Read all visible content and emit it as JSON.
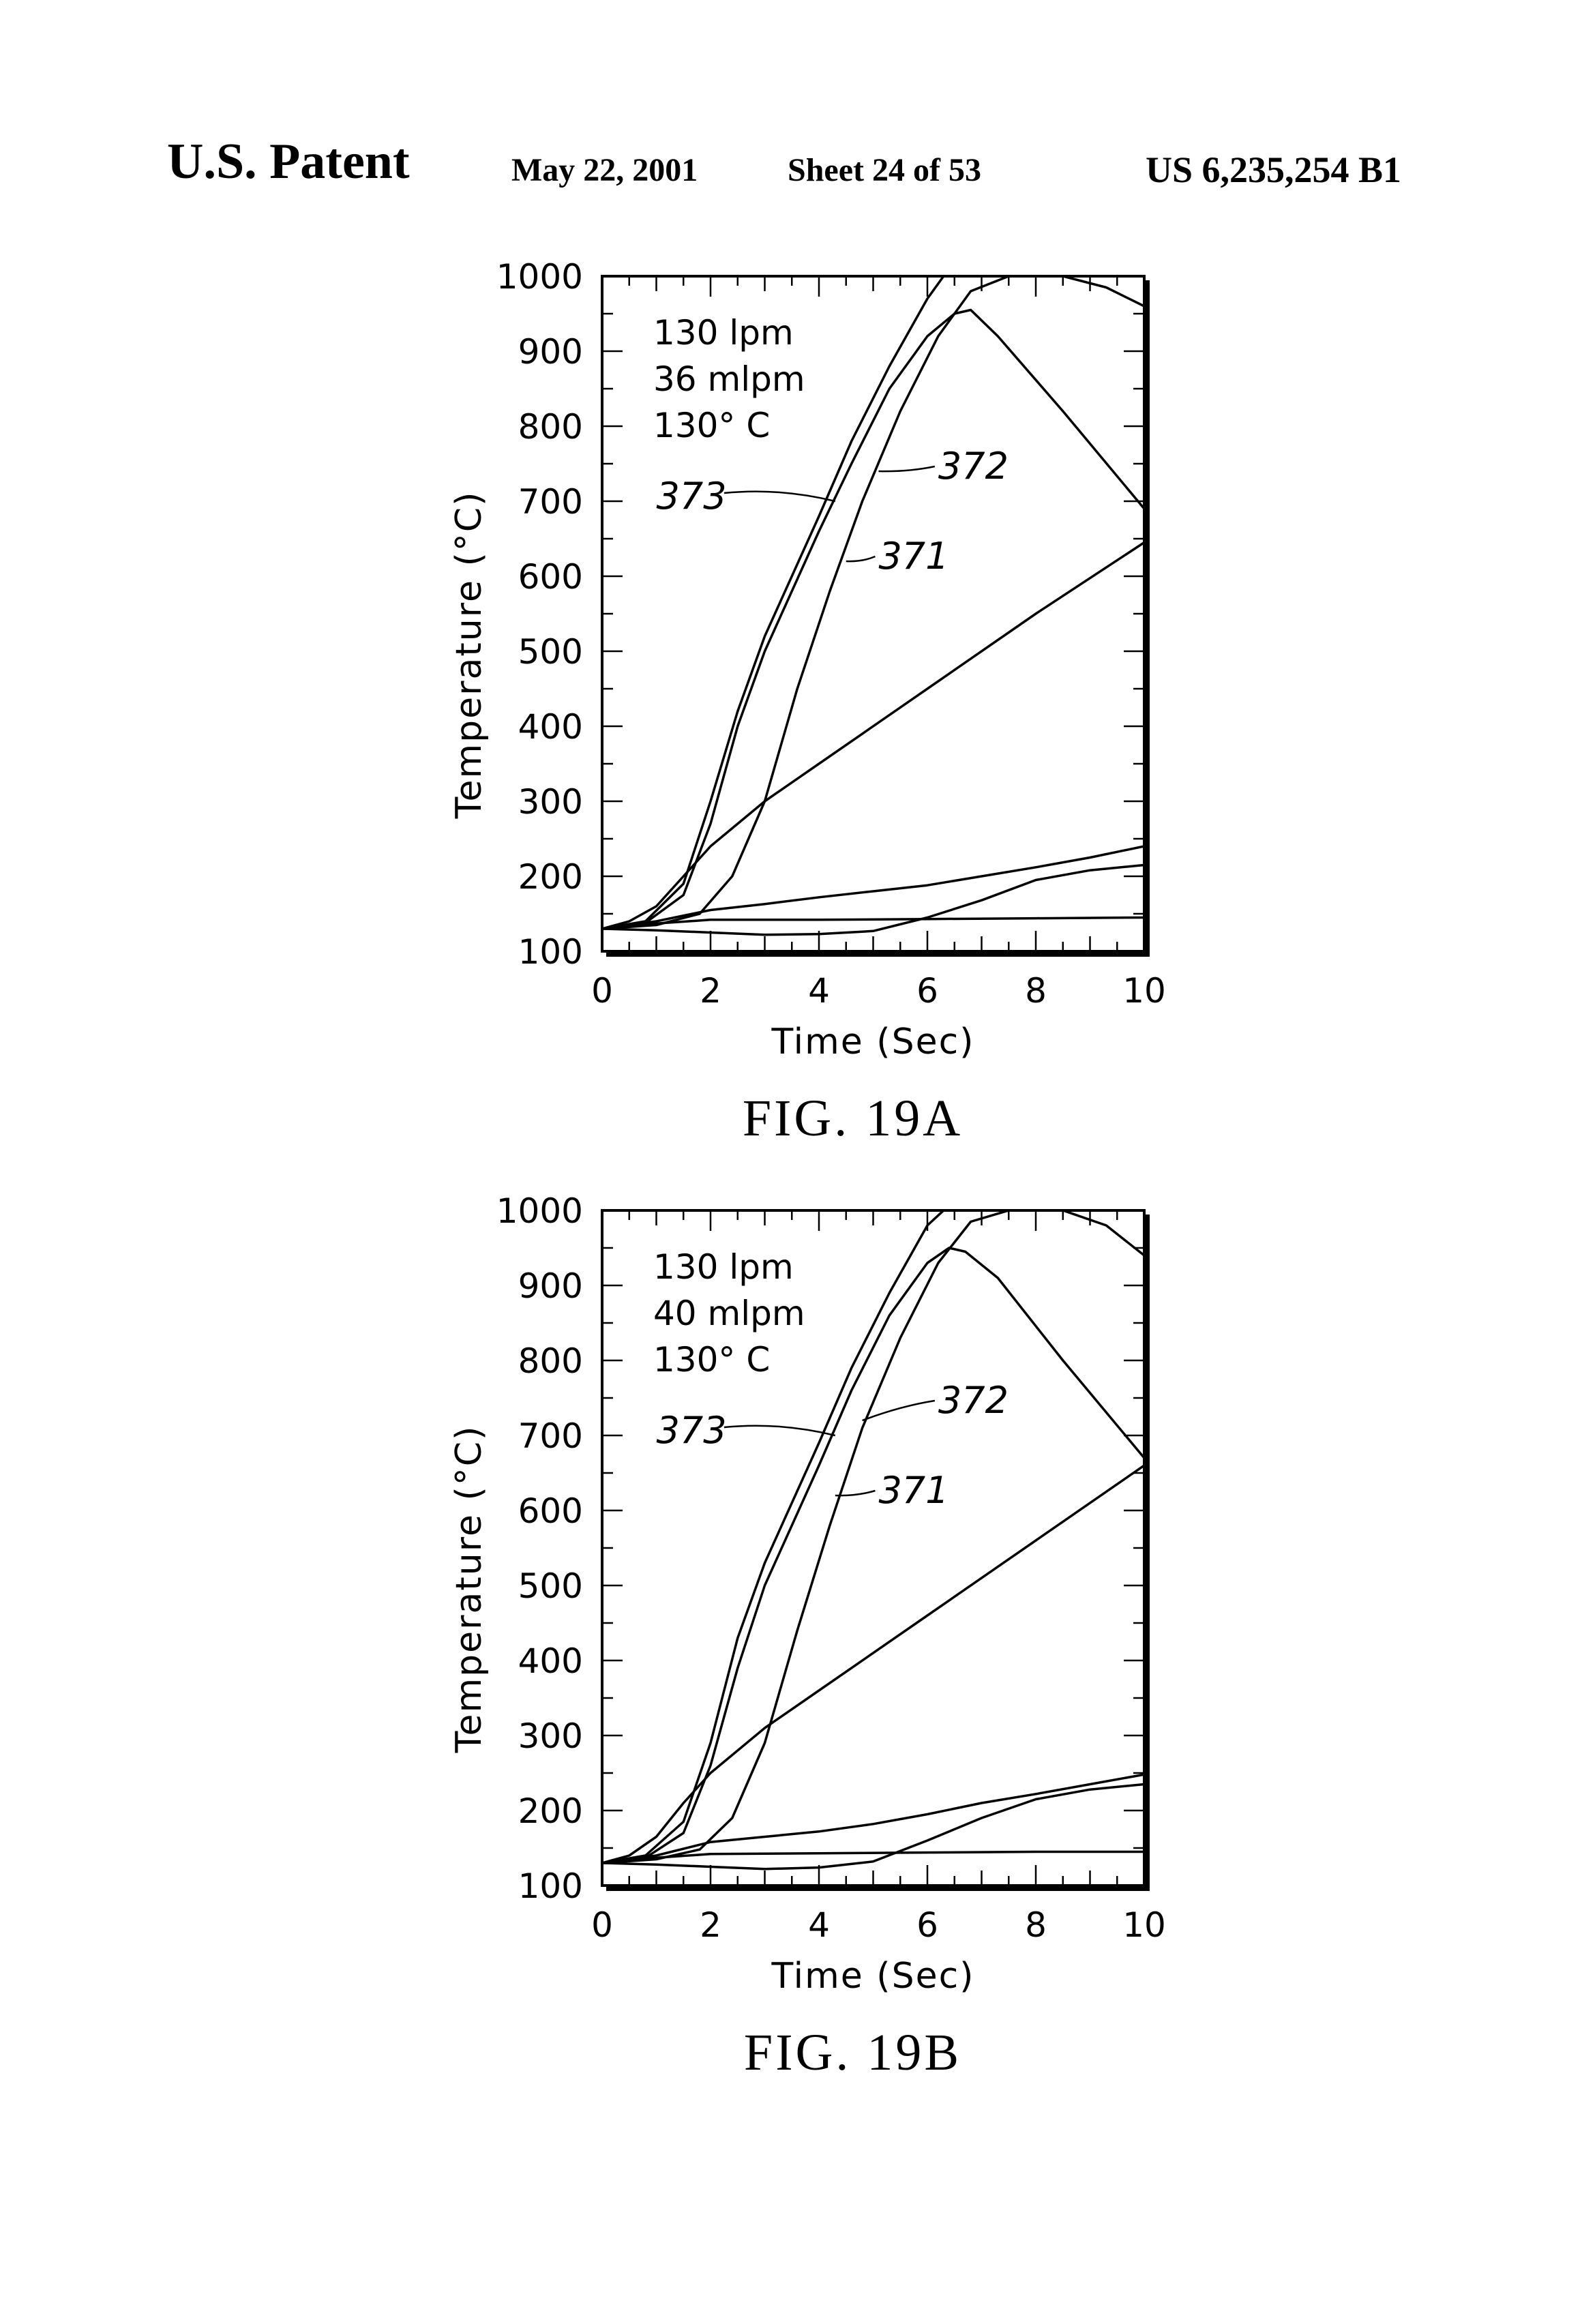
{
  "header": {
    "left": "U.S. Patent",
    "date": "May 22, 2001",
    "sheet": "Sheet 24 of 53",
    "number": "US 6,235,254 B1"
  },
  "chart_data": [
    {
      "type": "line",
      "caption": "FIG. 19A",
      "xlabel": "Time (Sec)",
      "ylabel": "Temperature (°C)",
      "xlim": [
        0,
        10
      ],
      "ylim": [
        100,
        1000
      ],
      "xticks": [
        "0",
        "2",
        "4",
        "6",
        "8",
        "10"
      ],
      "yticks": [
        "100",
        "200",
        "300",
        "400",
        "500",
        "600",
        "700",
        "800",
        "900",
        "1000"
      ],
      "annotation": [
        "130 lpm",
        "36 mlpm",
        "130° C"
      ],
      "callouts": [
        {
          "label": "373",
          "x": 4.3,
          "y": 700
        },
        {
          "label": "372",
          "x": 5.1,
          "y": 740
        },
        {
          "label": "371",
          "x": 4.5,
          "y": 620
        }
      ],
      "series": [
        {
          "label": "373",
          "points": [
            [
              0,
              130
            ],
            [
              0.8,
              140
            ],
            [
              1.5,
              190
            ],
            [
              2,
              300
            ],
            [
              2.5,
              420
            ],
            [
              3,
              520
            ],
            [
              4,
              680
            ],
            [
              4.6,
              780
            ],
            [
              5.3,
              880
            ],
            [
              6,
              970
            ],
            [
              6.3,
              1000
            ]
          ]
        },
        {
          "label": "372",
          "points": [
            [
              0,
              130
            ],
            [
              0.8,
              138
            ],
            [
              1.5,
              175
            ],
            [
              2,
              270
            ],
            [
              2.5,
              400
            ],
            [
              3,
              500
            ],
            [
              4,
              660
            ],
            [
              4.6,
              750
            ],
            [
              5.3,
              850
            ],
            [
              6,
              920
            ],
            [
              6.5,
              950
            ],
            [
              6.8,
              955
            ],
            [
              7.3,
              920
            ],
            [
              8.5,
              820
            ],
            [
              10,
              690
            ]
          ]
        },
        {
          "label": "371",
          "points": [
            [
              0,
              130
            ],
            [
              1,
              135
            ],
            [
              1.8,
              150
            ],
            [
              2.4,
              200
            ],
            [
              3,
              300
            ],
            [
              3.6,
              450
            ],
            [
              4.2,
              580
            ],
            [
              4.8,
              700
            ],
            [
              5.5,
              820
            ],
            [
              6.2,
              920
            ],
            [
              6.8,
              980
            ],
            [
              7.5,
              1000
            ],
            [
              8.5,
              1000
            ],
            [
              9.3,
              985
            ],
            [
              10,
              960
            ]
          ]
        },
        {
          "points": [
            [
              0,
              130
            ],
            [
              0.5,
              140
            ],
            [
              1,
              160
            ],
            [
              1.5,
              200
            ],
            [
              2,
              240
            ],
            [
              3,
              300
            ],
            [
              4,
              350
            ],
            [
              6,
              450
            ],
            [
              8,
              550
            ],
            [
              10,
              645
            ]
          ]
        },
        {
          "points": [
            [
              0,
              130
            ],
            [
              1,
              140
            ],
            [
              2,
              155
            ],
            [
              3,
              163
            ],
            [
              4,
              172
            ],
            [
              5,
              180
            ],
            [
              6,
              188
            ],
            [
              7,
              200
            ],
            [
              8,
              212
            ],
            [
              9,
              225
            ],
            [
              10,
              240
            ]
          ]
        },
        {
          "points": [
            [
              0,
              130
            ],
            [
              1,
              137
            ],
            [
              2,
              142
            ],
            [
              4,
              142
            ],
            [
              6,
              143
            ],
            [
              8,
              144
            ],
            [
              10,
              145
            ]
          ]
        },
        {
          "points": [
            [
              0,
              130
            ],
            [
              1,
              128
            ],
            [
              2,
              125
            ],
            [
              3,
              122
            ],
            [
              4,
              123
            ],
            [
              5,
              127
            ],
            [
              6,
              145
            ],
            [
              7,
              168
            ],
            [
              8,
              195
            ],
            [
              9,
              208
            ],
            [
              10,
              215
            ]
          ]
        }
      ]
    },
    {
      "type": "line",
      "caption": "FIG. 19B",
      "xlabel": "Time (Sec)",
      "ylabel": "Temperature (°C)",
      "xlim": [
        0,
        10
      ],
      "ylim": [
        100,
        1000
      ],
      "xticks": [
        "0",
        "2",
        "4",
        "6",
        "8",
        "10"
      ],
      "yticks": [
        "100",
        "200",
        "300",
        "400",
        "500",
        "600",
        "700",
        "800",
        "900",
        "1000"
      ],
      "annotation": [
        "130 lpm",
        "40 mlpm",
        "130° C"
      ],
      "callouts": [
        {
          "label": "373",
          "x": 4.3,
          "y": 700
        },
        {
          "label": "372",
          "x": 4.8,
          "y": 720
        },
        {
          "label": "371",
          "x": 4.3,
          "y": 620
        }
      ],
      "series": [
        {
          "label": "373",
          "points": [
            [
              0,
              130
            ],
            [
              0.8,
              140
            ],
            [
              1.5,
              185
            ],
            [
              2,
              290
            ],
            [
              2.5,
              430
            ],
            [
              3,
              530
            ],
            [
              4,
              690
            ],
            [
              4.6,
              790
            ],
            [
              5.3,
              890
            ],
            [
              6,
              980
            ],
            [
              6.3,
              1000
            ]
          ]
        },
        {
          "label": "372",
          "points": [
            [
              0,
              130
            ],
            [
              0.8,
              137
            ],
            [
              1.5,
              170
            ],
            [
              2,
              260
            ],
            [
              2.5,
              390
            ],
            [
              3,
              500
            ],
            [
              4,
              660
            ],
            [
              4.6,
              760
            ],
            [
              5.3,
              860
            ],
            [
              6,
              930
            ],
            [
              6.4,
              950
            ],
            [
              6.7,
              945
            ],
            [
              7.3,
              910
            ],
            [
              8.5,
              800
            ],
            [
              10,
              670
            ]
          ]
        },
        {
          "label": "371",
          "points": [
            [
              0,
              130
            ],
            [
              1,
              135
            ],
            [
              1.8,
              148
            ],
            [
              2.4,
              190
            ],
            [
              3,
              290
            ],
            [
              3.6,
              440
            ],
            [
              4.2,
              580
            ],
            [
              4.8,
              710
            ],
            [
              5.5,
              830
            ],
            [
              6.2,
              930
            ],
            [
              6.8,
              985
            ],
            [
              7.5,
              1000
            ],
            [
              8.5,
              1000
            ],
            [
              9.3,
              980
            ],
            [
              10,
              940
            ]
          ]
        },
        {
          "points": [
            [
              0,
              130
            ],
            [
              0.5,
              140
            ],
            [
              1,
              165
            ],
            [
              1.5,
              210
            ],
            [
              2,
              250
            ],
            [
              3,
              310
            ],
            [
              4,
              360
            ],
            [
              6,
              460
            ],
            [
              8,
              560
            ],
            [
              10,
              660
            ]
          ]
        },
        {
          "points": [
            [
              0,
              130
            ],
            [
              1,
              140
            ],
            [
              2,
              158
            ],
            [
              3,
              165
            ],
            [
              4,
              172
            ],
            [
              5,
              182
            ],
            [
              6,
              195
            ],
            [
              7,
              210
            ],
            [
              8,
              222
            ],
            [
              9,
              235
            ],
            [
              10,
              248
            ]
          ]
        },
        {
          "points": [
            [
              0,
              130
            ],
            [
              1,
              137
            ],
            [
              2,
              142
            ],
            [
              4,
              143
            ],
            [
              6,
              144
            ],
            [
              8,
              145
            ],
            [
              10,
              145
            ]
          ]
        },
        {
          "points": [
            [
              0,
              130
            ],
            [
              1,
              128
            ],
            [
              2,
              125
            ],
            [
              3,
              122
            ],
            [
              4,
              124
            ],
            [
              5,
              132
            ],
            [
              6,
              160
            ],
            [
              7,
              190
            ],
            [
              8,
              215
            ],
            [
              9,
              228
            ],
            [
              10,
              235
            ]
          ]
        }
      ]
    }
  ]
}
